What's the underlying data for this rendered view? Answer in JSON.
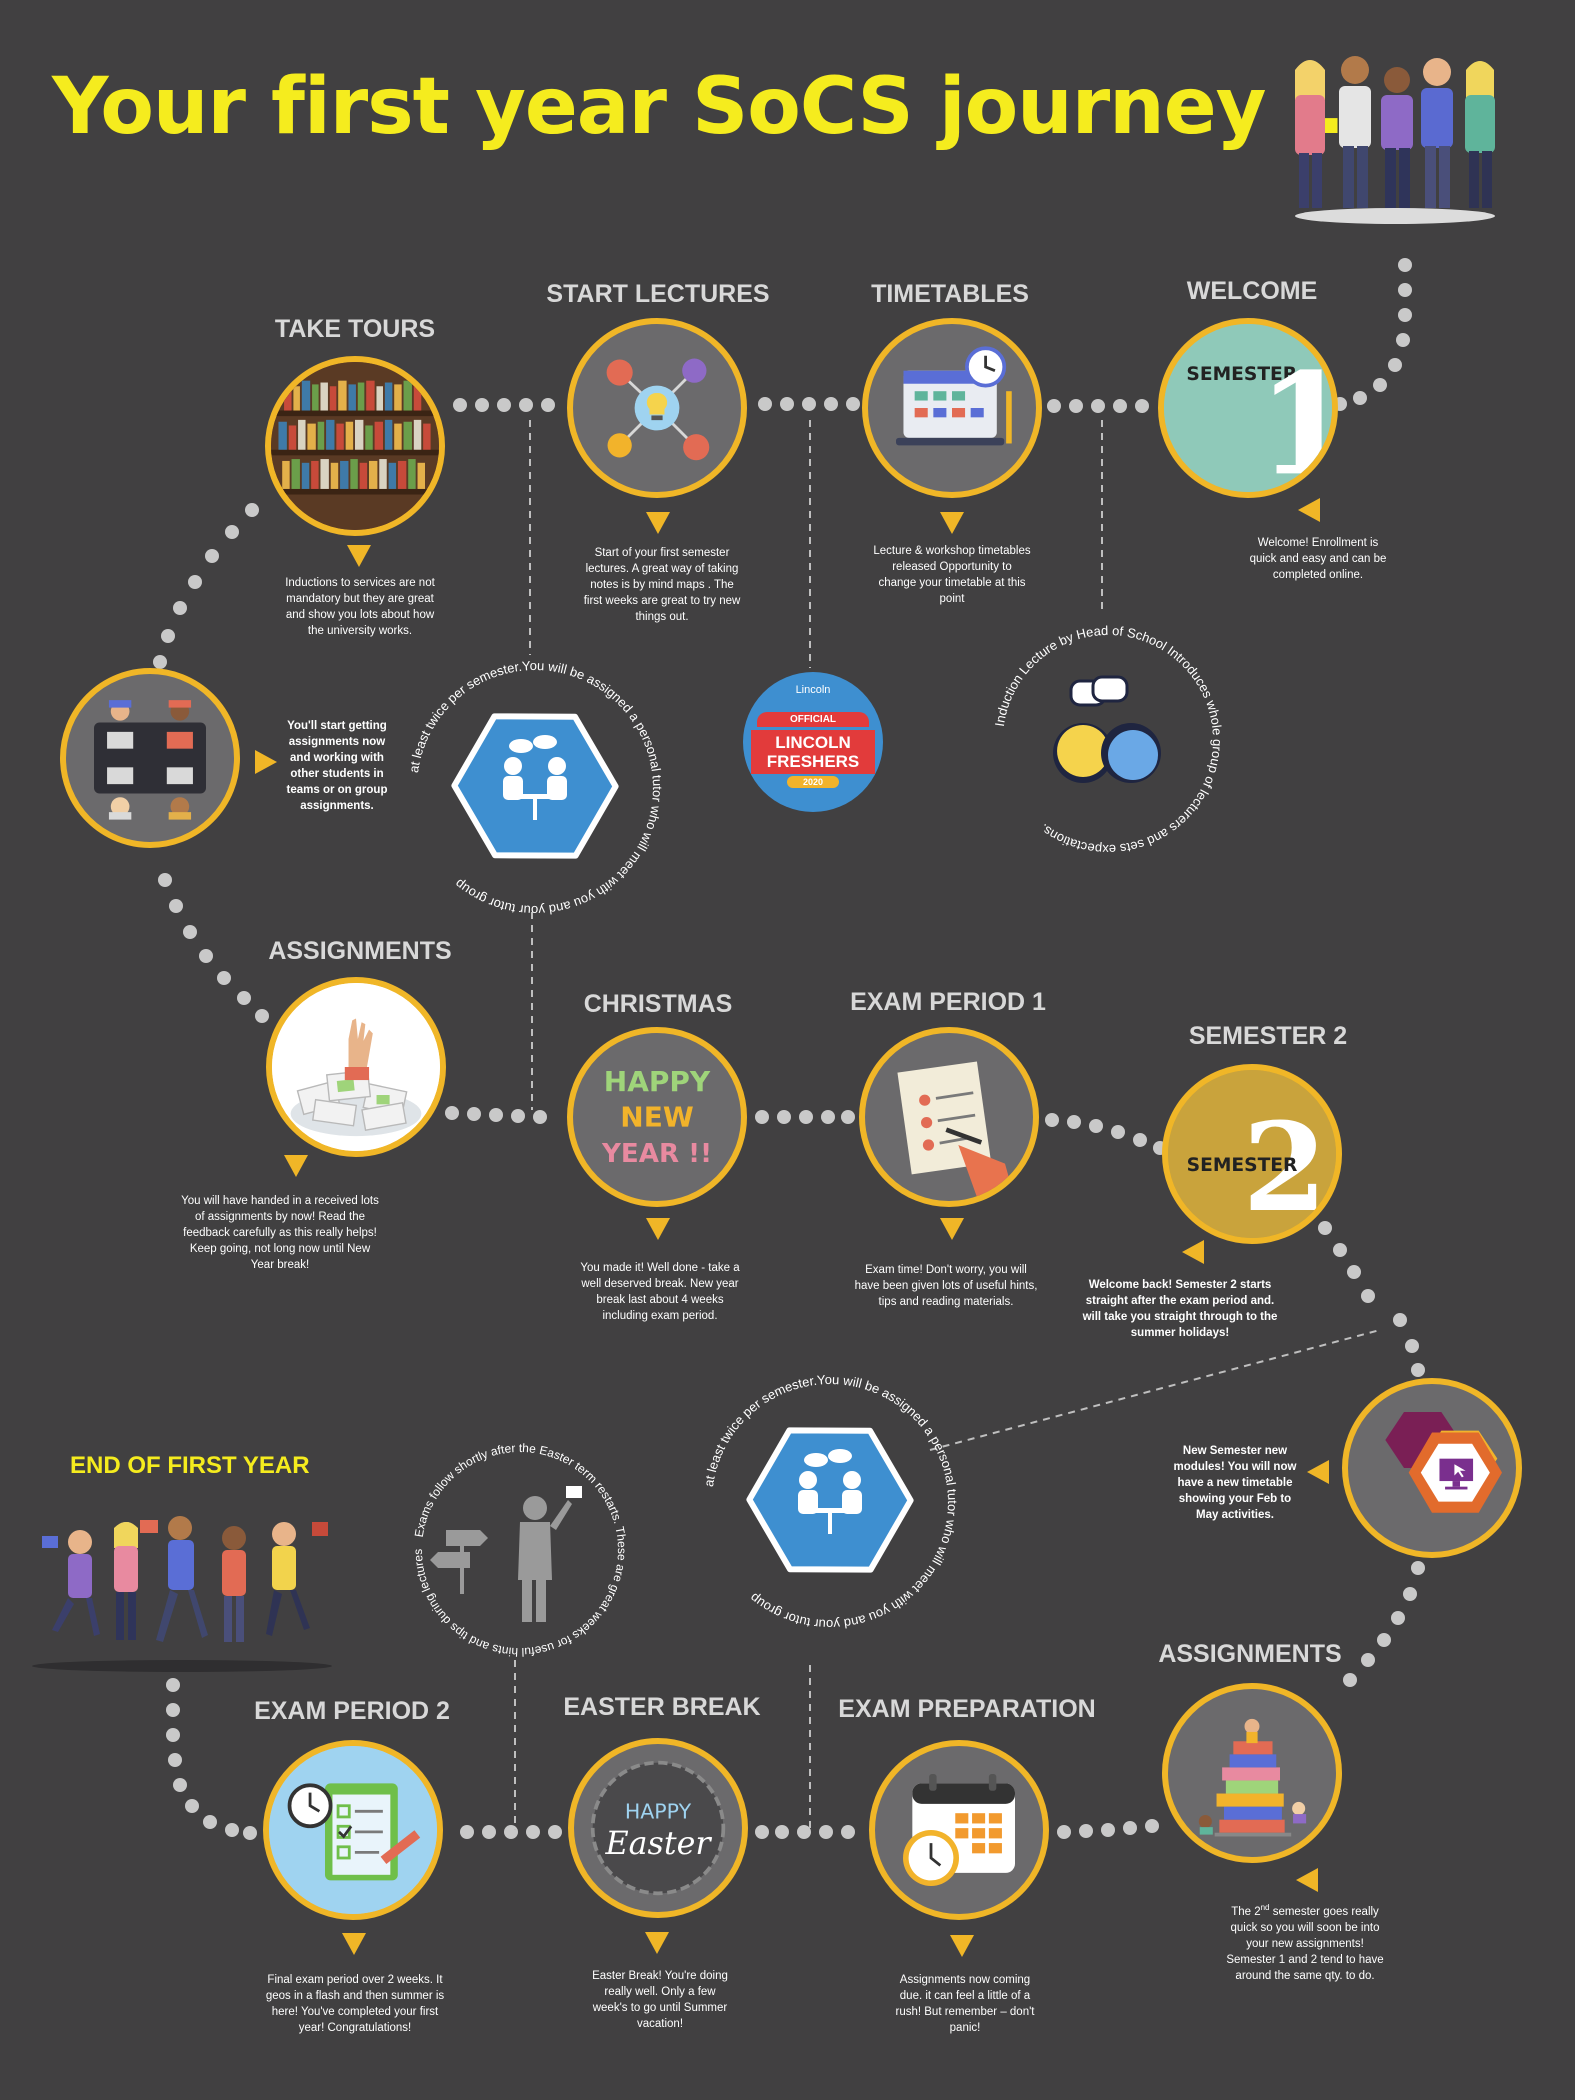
{
  "title": "Your first year SoCS journey …",
  "end_label": "END OF FIRST YEAR",
  "stages": {
    "welcome": {
      "label": "WELCOME",
      "desc": "Welcome! Enrollment is quick and easy and can be completed online.",
      "icon_text": "SEMESTER",
      "icon_num": "1"
    },
    "timetables": {
      "label": "TIMETABLES",
      "desc": "Lecture & workshop timetables released Opportunity to change your timetable at this point"
    },
    "start_lectures": {
      "label": "START LECTURES",
      "desc": "Start of your first semester lectures. A great way of taking notes  is by mind maps . The first weeks are great to try new things out."
    },
    "take_tours": {
      "label": "TAKE TOURS",
      "desc": "Inductions to services are not mandatory but they are great and show you lots about how the university works."
    },
    "group_work": {
      "desc": "You'll start getting assignments now and working with other students in teams or on group assignments."
    },
    "assignments1": {
      "label": "ASSIGNMENTS",
      "desc": "You will have handed in a received lots of  assignments by now! Read the feedback carefully as this really helps! Keep going, not long now until New Year break!"
    },
    "christmas": {
      "label": "CHRISTMAS",
      "desc": "You made it! Well done - take a well deserved break. New year break last about 4 weeks including exam period.",
      "icon_lines": [
        "HAPPY",
        "NEW",
        "YEAR !!"
      ]
    },
    "exam1": {
      "label": "EXAM PERIOD 1",
      "desc": "Exam time! Don't worry, you will have been given lots of useful hints, tips and reading materials."
    },
    "semester2": {
      "label": "SEMESTER 2",
      "desc": "Welcome back! Semester 2 starts straight after the exam period and. will take you straight through to the summer holidays!",
      "icon_text": "SEMESTER",
      "icon_num": "2"
    },
    "new_modules": {
      "desc": "New Semester new modules! You  will now have a new timetable showing your Feb to May activities."
    },
    "assignments2": {
      "label": "ASSIGNMENTS",
      "desc_pre": "The 2",
      "desc_sup": "nd",
      "desc_post": " semester goes really quick so you will soon be into your new assignments! Semester 1 and 2 tend to have around the same qty. to do."
    },
    "exam_prep": {
      "label": "EXAM PREPARATION",
      "desc": "Assignments now coming due. it can feel a little of a rush! But remember – don't panic!"
    },
    "easter": {
      "label": "EASTER BREAK",
      "desc": "Easter Break! You're doing really well. Only a few week's to go until Summer vacation!",
      "icon_top": "HAPPY",
      "icon_bottom": "Easter"
    },
    "exam2": {
      "label": "EXAM PERIOD 2",
      "desc": "Final exam period over 2 weeks. It geos in a flash and then summer is here! You've completed your first year! Congratulations!"
    }
  },
  "rings": {
    "tutor": "at least twice per semester.You will be assigned a personal tutor who will meet with you and your tutor group",
    "induction": "Induction Lecture by Head of School Introduces whole group of lecturers and sets expectations.",
    "exams": "Exams follow shortly after the Easter term restarts. These are great weeks for useful hints and tips during lectures!"
  },
  "freshers": {
    "line1": "Lincoln",
    "line2": "OFFICIAL",
    "line3": "LINCOLN FRESHERS",
    "line4": "2020"
  },
  "colors": {
    "background": "#414041",
    "title": "#f5ec1e",
    "ring": "#f0b627",
    "label": "#d8d8d8",
    "dots": "#c9c9c9",
    "hex": "#3e8fd0"
  }
}
